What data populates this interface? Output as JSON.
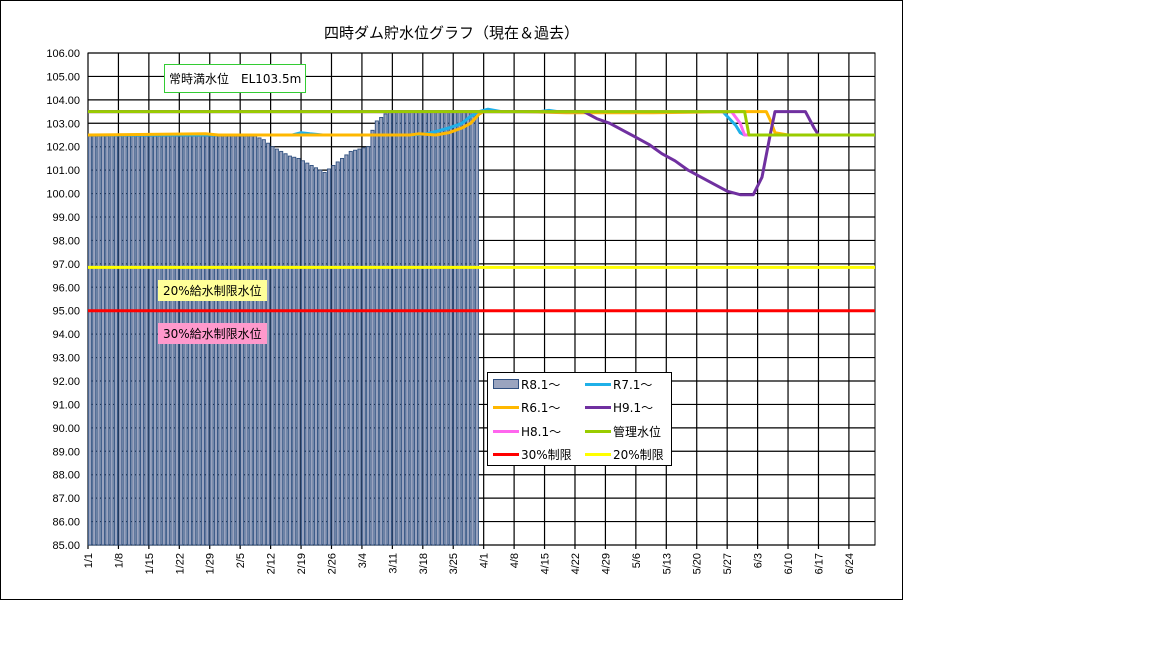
{
  "title": "四時ダム貯水位グラフ（現在＆過去）",
  "annotations": {
    "full_level": "常時満水位　EL103.5m",
    "restrict_20": "20%給水制限水位",
    "restrict_30": "30%給水制限水位"
  },
  "legend": [
    {
      "label": "R8.1～",
      "color": "#9aa4bf",
      "type": "bar"
    },
    {
      "label": "R7.1～",
      "color": "#1fb0e8",
      "type": "line"
    },
    {
      "label": "R6.1～",
      "color": "#ffb800",
      "type": "line"
    },
    {
      "label": "H9.1～",
      "color": "#7030a0",
      "type": "line"
    },
    {
      "label": "H8.1～",
      "color": "#ff66ee",
      "type": "line"
    },
    {
      "label": "管理水位",
      "color": "#99cc00",
      "type": "line"
    },
    {
      "label": "30%制限",
      "color": "#ff0000",
      "type": "line"
    },
    {
      "label": "20%制限",
      "color": "#ffff00",
      "type": "line"
    }
  ],
  "chart_data": {
    "type": "bar",
    "title": "四時ダム貯水位グラフ（現在＆過去）",
    "xlabel": "",
    "ylabel": "",
    "ylim": [
      85,
      106
    ],
    "y_ticks": [
      "85.00",
      "86.00",
      "87.00",
      "88.00",
      "89.00",
      "90.00",
      "91.00",
      "92.00",
      "93.00",
      "94.00",
      "95.00",
      "96.00",
      "97.00",
      "98.00",
      "99.00",
      "100.00",
      "101.00",
      "102.00",
      "103.00",
      "104.00",
      "105.00",
      "106.00"
    ],
    "x_ticks": [
      "1/1",
      "1/8",
      "1/15",
      "1/22",
      "1/29",
      "2/5",
      "2/12",
      "2/19",
      "2/26",
      "3/4",
      "3/11",
      "3/18",
      "3/25",
      "4/1",
      "4/8",
      "4/15",
      "4/22",
      "4/29",
      "5/6",
      "5/13",
      "5/20",
      "5/27",
      "6/3",
      "6/10",
      "6/17",
      "6/24"
    ],
    "grid": true,
    "legend_position": "inside-lower-center",
    "days_total": 181,
    "series": [
      {
        "name": "R8.1～",
        "type": "bar",
        "start_day": 0,
        "points": [
          [
            0,
            102.45
          ],
          [
            38,
            102.45
          ],
          [
            40,
            102.3
          ],
          [
            42,
            102.0
          ],
          [
            44,
            101.8
          ],
          [
            46,
            101.6
          ],
          [
            48,
            101.5
          ],
          [
            50,
            101.3
          ],
          [
            52,
            101.1
          ],
          [
            53,
            101.0
          ],
          [
            54,
            100.9
          ],
          [
            56,
            101.2
          ],
          [
            58,
            101.5
          ],
          [
            60,
            101.8
          ],
          [
            62,
            101.9
          ],
          [
            64,
            102.0
          ],
          [
            65,
            102.7
          ],
          [
            66,
            103.1
          ],
          [
            68,
            103.4
          ],
          [
            70,
            103.5
          ],
          [
            89,
            103.5
          ]
        ]
      },
      {
        "name": "R7.1～",
        "type": "line",
        "points": [
          [
            0,
            102.5
          ],
          [
            47,
            102.5
          ],
          [
            49,
            102.6
          ],
          [
            51,
            102.55
          ],
          [
            54,
            102.5
          ],
          [
            74,
            102.5
          ],
          [
            78,
            102.55
          ],
          [
            83,
            102.8
          ],
          [
            86,
            103.0
          ],
          [
            88,
            103.3
          ],
          [
            90,
            103.5
          ],
          [
            92,
            103.6
          ],
          [
            95,
            103.5
          ],
          [
            104,
            103.5
          ],
          [
            106,
            103.55
          ],
          [
            108,
            103.5
          ],
          [
            146,
            103.5
          ],
          [
            149,
            102.9
          ],
          [
            150,
            102.6
          ],
          [
            151,
            102.5
          ],
          [
            181,
            102.5
          ]
        ]
      },
      {
        "name": "R6.1～",
        "type": "line",
        "points": [
          [
            0,
            102.5
          ],
          [
            27,
            102.55
          ],
          [
            30,
            102.5
          ],
          [
            74,
            102.5
          ],
          [
            76,
            102.55
          ],
          [
            80,
            102.5
          ],
          [
            83,
            102.6
          ],
          [
            86,
            102.8
          ],
          [
            88,
            103.0
          ],
          [
            90,
            103.4
          ],
          [
            91,
            103.5
          ],
          [
            100,
            103.5
          ],
          [
            110,
            103.45
          ],
          [
            130,
            103.45
          ],
          [
            150,
            103.5
          ],
          [
            156,
            103.5
          ],
          [
            157,
            103.1
          ],
          [
            158,
            102.6
          ],
          [
            161,
            102.5
          ],
          [
            181,
            102.5
          ]
        ]
      },
      {
        "name": "H9.1～",
        "type": "line",
        "points": [
          [
            0,
            103.5
          ],
          [
            114,
            103.5
          ],
          [
            117,
            103.2
          ],
          [
            120,
            103.0
          ],
          [
            123,
            102.7
          ],
          [
            126,
            102.4
          ],
          [
            129,
            102.1
          ],
          [
            132,
            101.7
          ],
          [
            135,
            101.4
          ],
          [
            138,
            101.0
          ],
          [
            141,
            100.7
          ],
          [
            144,
            100.4
          ],
          [
            147,
            100.1
          ],
          [
            150,
            99.95
          ],
          [
            153,
            99.95
          ],
          [
            155,
            100.7
          ],
          [
            157,
            102.6
          ],
          [
            158,
            103.5
          ],
          [
            165,
            103.5
          ],
          [
            167,
            102.8
          ],
          [
            168,
            102.5
          ],
          [
            181,
            102.5
          ]
        ]
      },
      {
        "name": "H8.1～",
        "type": "line",
        "points": [
          [
            0,
            103.5
          ],
          [
            148,
            103.5
          ],
          [
            150,
            103.0
          ],
          [
            151,
            102.5
          ],
          [
            181,
            102.5
          ]
        ]
      },
      {
        "name": "管理水位",
        "type": "line",
        "points": [
          [
            0,
            103.5
          ],
          [
            151,
            103.5
          ],
          [
            152,
            102.5
          ],
          [
            181,
            102.5
          ]
        ]
      },
      {
        "name": "30%制限",
        "type": "line",
        "points": [
          [
            0,
            95.0
          ],
          [
            181,
            95.0
          ]
        ]
      },
      {
        "name": "20%制限",
        "type": "line",
        "points": [
          [
            0,
            96.85
          ],
          [
            181,
            96.85
          ]
        ]
      }
    ]
  }
}
